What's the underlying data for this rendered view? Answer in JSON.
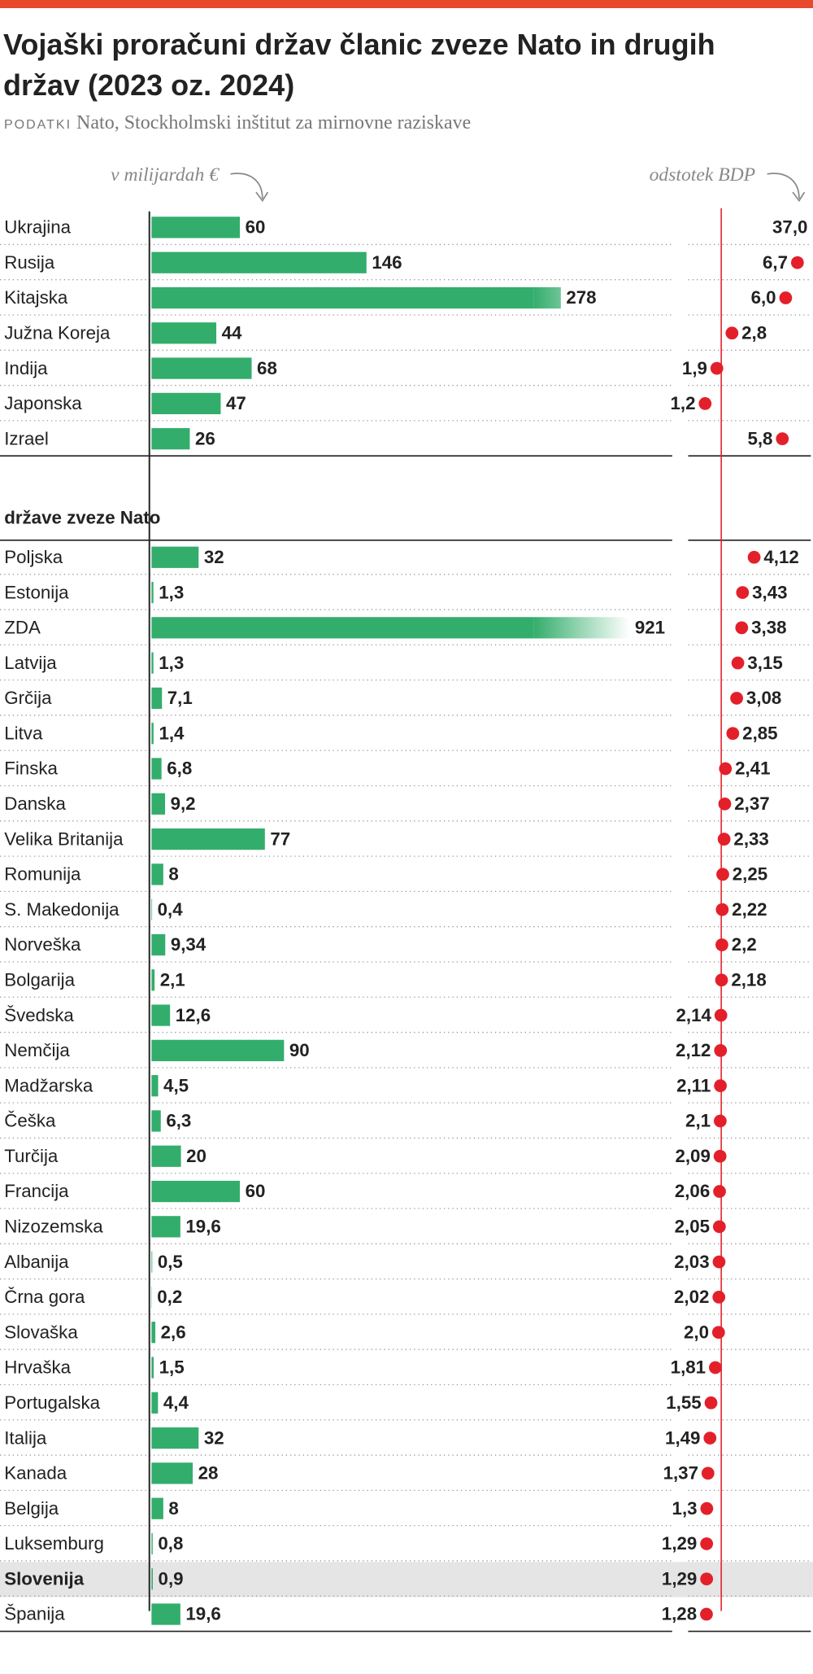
{
  "chart_data": {
    "type": "bar-dot",
    "title": "Vojaški proračuni držav članic zveze Nato in drugih držav (2023 oz. 2024)",
    "source_label": "PODATKI",
    "source": "Nato, Stockholmski inštitut za mirnovne raziskave",
    "bar_axis_label": "v milijardah €",
    "dot_axis_label": "odstotek BDP",
    "bar_color": "#33ad6c",
    "dot_color": "#e3202a",
    "xlim": [
      0,
      350
    ],
    "gdp_xlim": [
      0,
      7.5
    ],
    "groups": [
      {
        "categories": [
          "Ukrajina",
          "Rusija",
          "Kitajska",
          "Južna Koreja",
          "Indija",
          "Japonska",
          "Izrael"
        ],
        "values": [
          60,
          146,
          278,
          44,
          68,
          47,
          26
        ],
        "value_labels": [
          "60",
          "146",
          "278",
          "44",
          "68",
          "47",
          "26"
        ],
        "gdp": [
          37.0,
          6.7,
          6.0,
          2.8,
          1.9,
          1.2,
          5.8
        ],
        "gdp_labels": [
          "37,0",
          "6,7",
          "6,0",
          "2,8",
          "1,9",
          "1,2",
          "5,8"
        ]
      },
      {
        "heading": "države zveze Nato",
        "highlight": "Slovenija",
        "categories": [
          "Poljska",
          "Estonija",
          "ZDA",
          "Latvija",
          "Grčija",
          "Litva",
          "Finska",
          "Danska",
          "Velika Britanija",
          "Romunija",
          "S. Makedonija",
          "Norveška",
          "Bolgarija",
          "Švedska",
          "Nemčija",
          "Madžarska",
          "Češka",
          "Turčija",
          "Francija",
          "Nizozemska",
          "Albanija",
          "Črna gora",
          "Slovaška",
          "Hrvaška",
          "Portugalska",
          "Italija",
          "Kanada",
          "Belgija",
          "Luksemburg",
          "Slovenija",
          "Španija"
        ],
        "values": [
          32,
          1.3,
          921,
          1.3,
          7.1,
          1.4,
          6.8,
          9.2,
          77,
          8,
          0.4,
          9.34,
          2.1,
          12.6,
          90,
          4.5,
          6.3,
          20,
          60,
          19.6,
          0.5,
          0.2,
          2.6,
          1.5,
          4.4,
          32,
          28,
          8,
          0.8,
          0.9,
          19.6
        ],
        "value_labels": [
          "32",
          "1,3",
          "921",
          "1,3",
          "7,1",
          "1,4",
          "6,8",
          "9,2",
          "77",
          "8",
          "0,4",
          "9,34",
          "2,1",
          "12,6",
          "90",
          "4,5",
          "6,3",
          "20",
          "60",
          "19,6",
          "0,5",
          "0,2",
          "2,6",
          "1,5",
          "4,4",
          "32",
          "28",
          "8",
          "0,8",
          "0,9",
          "19,6"
        ],
        "gdp": [
          4.12,
          3.43,
          3.38,
          3.15,
          3.08,
          2.85,
          2.41,
          2.37,
          2.33,
          2.25,
          2.22,
          2.2,
          2.18,
          2.14,
          2.12,
          2.11,
          2.1,
          2.09,
          2.06,
          2.05,
          2.03,
          2.02,
          2.0,
          1.81,
          1.55,
          1.49,
          1.37,
          1.3,
          1.29,
          1.29,
          1.28
        ],
        "gdp_labels": [
          "4,12",
          "3,43",
          "3,38",
          "3,15",
          "3,08",
          "2,85",
          "2,41",
          "2,37",
          "2,33",
          "2,25",
          "2,22",
          "2,2",
          "2,18",
          "2,14",
          "2,12",
          "2,11",
          "2,1",
          "2,09",
          "2,06",
          "2,05",
          "2,03",
          "2,02",
          "2,0",
          "1,81",
          "1,55",
          "1,49",
          "1,37",
          "1,3",
          "1,29",
          "1,29",
          "1,28"
        ]
      }
    ]
  }
}
